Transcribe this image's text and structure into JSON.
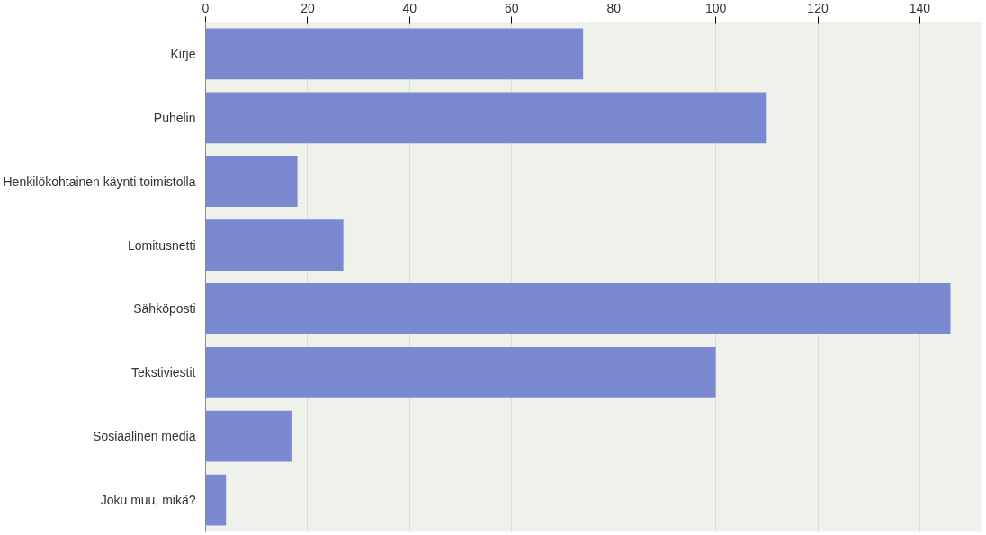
{
  "chart_data": {
    "type": "bar",
    "orientation": "horizontal",
    "categories": [
      "Kirje",
      "Puhelin",
      "Henkilökohtainen käynti toimistolla",
      "Lomitusnetti",
      "Sähköposti",
      "Tekstiviestit",
      "Sosiaalinen media",
      "Joku muu, mikä?"
    ],
    "values": [
      74,
      110,
      18,
      27,
      146,
      100,
      17,
      4
    ],
    "color": "#7b89d1",
    "xlim": [
      0,
      152
    ],
    "xticks": [
      0,
      20,
      40,
      60,
      80,
      100,
      120,
      140
    ],
    "grid": "x"
  }
}
